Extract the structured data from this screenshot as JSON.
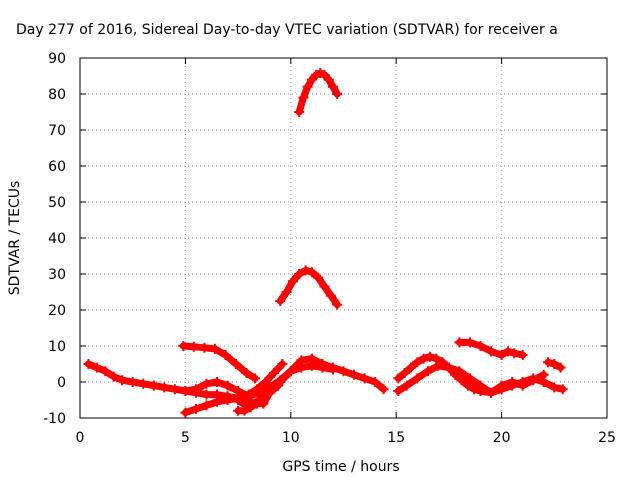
{
  "chart_data": {
    "type": "scatter",
    "title": "Day 277 of 2016, Sidereal Day-to-day VTEC variation (SDTVAR) for receiver a",
    "xlabel": "GPS time / hours",
    "ylabel": "SDTVAR / TECUs",
    "xlim": [
      0,
      25
    ],
    "ylim": [
      -10,
      90
    ],
    "x_ticks": [
      0,
      5,
      10,
      15,
      20,
      25
    ],
    "y_ticks": [
      -10,
      0,
      10,
      20,
      30,
      40,
      50,
      60,
      70,
      80,
      90
    ],
    "grid": true,
    "legend": "none",
    "marker": "plus",
    "series": [
      {
        "color": "#ff0000",
        "x": [
          10.4,
          10.6,
          10.8,
          11.0,
          11.2,
          11.4,
          11.6,
          11.8,
          12.0,
          12.2
        ],
        "y": [
          75,
          79,
          82,
          84,
          85.3,
          85.8,
          85.3,
          84,
          82,
          80
        ]
      },
      {
        "color": "#ff0000",
        "x": [
          9.5,
          9.8,
          10.1,
          10.4,
          10.7,
          11.0,
          11.3,
          11.6,
          11.9,
          12.2
        ],
        "y": [
          22.5,
          25,
          28,
          30,
          31,
          30.5,
          29,
          26.5,
          24,
          21.5
        ]
      },
      {
        "color": "#ff0000",
        "x": [
          4.9,
          5.4,
          5.9,
          6.4,
          6.9,
          7.4,
          7.9,
          8.3
        ],
        "y": [
          10,
          9.8,
          9.5,
          9.2,
          7.5,
          5,
          2.5,
          1
        ]
      },
      {
        "color": "#ff0000",
        "x": [
          18.0,
          18.5,
          19.0,
          19.5,
          20.0,
          20.3,
          20.6,
          21.0
        ],
        "y": [
          11,
          11,
          10,
          8.5,
          7.5,
          8.5,
          8,
          7.5
        ]
      },
      {
        "color": "#ff0000",
        "x": [
          22.2,
          22.5,
          22.8
        ],
        "y": [
          5.5,
          5,
          4
        ]
      },
      {
        "color": "#ff0000",
        "x": [
          0.4,
          0.8,
          1.2,
          1.6,
          2.0,
          2.5,
          3.0,
          3.5,
          4.0,
          4.5,
          5.0,
          5.5,
          6.0,
          6.5,
          7.0,
          7.5,
          8.0
        ],
        "y": [
          5,
          4,
          3,
          1.5,
          0.5,
          0,
          -0.5,
          -1,
          -1.5,
          -2,
          -2.5,
          -3,
          -3.5,
          -3.5,
          -4,
          -4.5,
          -5
        ]
      },
      {
        "color": "#ff0000",
        "x": [
          5.0,
          5.5,
          6.0,
          6.5,
          7.0,
          7.5,
          8.0,
          8.5,
          9.0,
          9.5,
          10.0,
          10.5,
          11.0,
          11.5,
          12.0
        ],
        "y": [
          -2.5,
          -2,
          -0.5,
          0,
          -1,
          -2.5,
          -4,
          -3,
          -1.5,
          0.5,
          3,
          4,
          4.5,
          4,
          3.5
        ]
      },
      {
        "color": "#ff0000",
        "x": [
          5.0,
          5.5,
          6.0,
          6.5,
          7.0,
          7.5,
          8.0,
          8.4,
          8.8,
          9.2,
          9.6
        ],
        "y": [
          -8.5,
          -7.5,
          -6.5,
          -5.5,
          -5,
          -4.5,
          -3.5,
          -2,
          0,
          2.5,
          5
        ]
      },
      {
        "color": "#ff0000",
        "x": [
          7.0,
          7.5,
          8.0,
          8.5,
          9.0,
          9.5,
          10.0,
          10.5,
          11.0,
          11.5,
          12.0,
          12.5,
          13.0,
          13.5,
          14.0,
          14.4
        ],
        "y": [
          -4,
          -5,
          -7,
          -5,
          -3,
          0,
          3,
          6,
          6.5,
          5,
          4,
          3,
          2,
          1,
          0,
          -2
        ]
      },
      {
        "color": "#ff0000",
        "x": [
          7.5,
          7.8,
          8.1,
          8.4,
          8.7,
          9.0,
          9.4
        ],
        "y": [
          -8,
          -8,
          -7,
          -6,
          -6,
          -3,
          -1
        ]
      },
      {
        "color": "#ff0000",
        "x": [
          15.1,
          15.4,
          15.7,
          16.0,
          16.3,
          16.6,
          16.9,
          17.2,
          17.5,
          17.8,
          18.1,
          18.4,
          18.7,
          19.0,
          19.5,
          20.0,
          20.5,
          21.0,
          21.5,
          22.0,
          22.5,
          22.9
        ],
        "y": [
          1,
          2.5,
          4,
          5.5,
          6.5,
          7,
          6.5,
          5.5,
          4,
          2,
          0.5,
          -1,
          -2,
          -2.5,
          -3,
          -2,
          -1,
          0,
          1,
          0,
          -1.5,
          -2
        ]
      },
      {
        "color": "#ff0000",
        "x": [
          15.1,
          15.5,
          16.0,
          16.5,
          17.0,
          17.5,
          18.0,
          18.5,
          19.0,
          19.5,
          20.0,
          20.5,
          21.0,
          21.5,
          22.0
        ],
        "y": [
          -2.5,
          -1,
          1,
          3,
          4.5,
          4,
          3,
          1,
          -1,
          -3,
          -1,
          0,
          -1,
          0.5,
          2
        ]
      }
    ]
  }
}
